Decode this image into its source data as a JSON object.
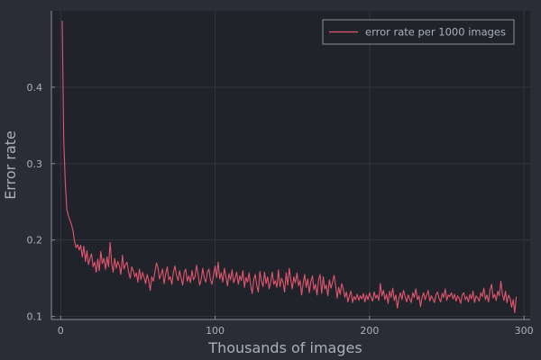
{
  "colors": {
    "background": "#2a2d35",
    "plot_background": "#21232a",
    "grid": "#363a43",
    "axis": "#8a8f99",
    "text": "#a9b0ba",
    "series": "#e2566f"
  },
  "chart_data": {
    "type": "line",
    "title": "",
    "xlabel": "Thousands of images",
    "ylabel": "Error rate",
    "xlim": [
      -6,
      304
    ],
    "ylim": [
      0.096,
      0.5
    ],
    "xticks": [
      0,
      100,
      200,
      300
    ],
    "xtick_labels": [
      "0",
      "100",
      "200",
      "300"
    ],
    "yticks": [
      0.1,
      0.2,
      0.3,
      0.4
    ],
    "ytick_labels": [
      "0.1",
      "0.2",
      "0.3",
      "0.4"
    ],
    "grid": true,
    "legend_position": "top-right",
    "series": [
      {
        "name": "error rate per 1000 images",
        "color": "#e2566f",
        "x": [
          1,
          2,
          3,
          4,
          5,
          6,
          7,
          8,
          9,
          10,
          11,
          12,
          13,
          14,
          15,
          16,
          17,
          18,
          19,
          20,
          21,
          22,
          23,
          24,
          25,
          26,
          27,
          28,
          29,
          30,
          31,
          32,
          33,
          34,
          35,
          36,
          37,
          38,
          39,
          40,
          41,
          42,
          43,
          44,
          45,
          46,
          47,
          48,
          49,
          50,
          51,
          52,
          53,
          54,
          55,
          56,
          57,
          58,
          59,
          60,
          61,
          62,
          63,
          64,
          65,
          66,
          67,
          68,
          69,
          70,
          71,
          72,
          73,
          74,
          75,
          76,
          77,
          78,
          79,
          80,
          81,
          82,
          83,
          84,
          85,
          86,
          87,
          88,
          89,
          90,
          91,
          92,
          93,
          94,
          95,
          96,
          97,
          98,
          99,
          100,
          101,
          102,
          103,
          104,
          105,
          106,
          107,
          108,
          109,
          110,
          111,
          112,
          113,
          114,
          115,
          116,
          117,
          118,
          119,
          120,
          121,
          122,
          123,
          124,
          125,
          126,
          127,
          128,
          129,
          130,
          131,
          132,
          133,
          134,
          135,
          136,
          137,
          138,
          139,
          140,
          141,
          142,
          143,
          144,
          145,
          146,
          147,
          148,
          149,
          150,
          151,
          152,
          153,
          154,
          155,
          156,
          157,
          158,
          159,
          160,
          161,
          162,
          163,
          164,
          165,
          166,
          167,
          168,
          169,
          170,
          171,
          172,
          173,
          174,
          175,
          176,
          177,
          178,
          179,
          180,
          181,
          182,
          183,
          184,
          185,
          186,
          187,
          188,
          189,
          190,
          191,
          192,
          193,
          194,
          195,
          196,
          197,
          198,
          199,
          200,
          201,
          202,
          203,
          204,
          205,
          206,
          207,
          208,
          209,
          210,
          211,
          212,
          213,
          214,
          215,
          216,
          217,
          218,
          219,
          220,
          221,
          222,
          223,
          224,
          225,
          226,
          227,
          228,
          229,
          230,
          231,
          232,
          233,
          234,
          235,
          236,
          237,
          238,
          239,
          240,
          241,
          242,
          243,
          244,
          245,
          246,
          247,
          248,
          249,
          250,
          251,
          252,
          253,
          254,
          255,
          256,
          257,
          258,
          259,
          260,
          261,
          262,
          263,
          264,
          265,
          266,
          267,
          268,
          269,
          270,
          271,
          272,
          273,
          274,
          275,
          276,
          277,
          278,
          279,
          280,
          281,
          282,
          283,
          284,
          285,
          286,
          287,
          288,
          289,
          290,
          291,
          292,
          293,
          294,
          295
        ],
        "y": [
          0.487,
          0.33,
          0.275,
          0.24,
          0.232,
          0.226,
          0.22,
          0.212,
          0.198,
          0.19,
          0.194,
          0.187,
          0.193,
          0.178,
          0.192,
          0.172,
          0.186,
          0.168,
          0.176,
          0.182,
          0.165,
          0.171,
          0.158,
          0.175,
          0.16,
          0.185,
          0.169,
          0.176,
          0.162,
          0.178,
          0.165,
          0.197,
          0.17,
          0.158,
          0.176,
          0.163,
          0.172,
          0.166,
          0.155,
          0.18,
          0.162,
          0.168,
          0.171,
          0.158,
          0.15,
          0.165,
          0.16,
          0.152,
          0.157,
          0.145,
          0.162,
          0.148,
          0.158,
          0.151,
          0.143,
          0.155,
          0.147,
          0.134,
          0.152,
          0.146,
          0.158,
          0.17,
          0.164,
          0.149,
          0.155,
          0.162,
          0.143,
          0.156,
          0.165,
          0.148,
          0.152,
          0.142,
          0.158,
          0.166,
          0.154,
          0.147,
          0.16,
          0.15,
          0.141,
          0.158,
          0.162,
          0.146,
          0.153,
          0.144,
          0.16,
          0.148,
          0.152,
          0.167,
          0.155,
          0.141,
          0.149,
          0.163,
          0.15,
          0.145,
          0.158,
          0.162,
          0.148,
          0.142,
          0.155,
          0.166,
          0.151,
          0.171,
          0.149,
          0.157,
          0.145,
          0.163,
          0.152,
          0.14,
          0.156,
          0.148,
          0.161,
          0.144,
          0.15,
          0.158,
          0.142,
          0.153,
          0.147,
          0.16,
          0.138,
          0.151,
          0.145,
          0.157,
          0.141,
          0.13,
          0.148,
          0.155,
          0.14,
          0.132,
          0.159,
          0.146,
          0.139,
          0.158,
          0.143,
          0.152,
          0.136,
          0.145,
          0.158,
          0.142,
          0.147,
          0.138,
          0.161,
          0.139,
          0.15,
          0.145,
          0.132,
          0.157,
          0.141,
          0.163,
          0.148,
          0.136,
          0.152,
          0.144,
          0.157,
          0.14,
          0.147,
          0.128,
          0.143,
          0.155,
          0.138,
          0.149,
          0.131,
          0.146,
          0.153,
          0.135,
          0.142,
          0.128,
          0.148,
          0.155,
          0.13,
          0.152,
          0.136,
          0.141,
          0.127,
          0.148,
          0.137,
          0.144,
          0.154,
          0.141,
          0.124,
          0.138,
          0.129,
          0.143,
          0.136,
          0.125,
          0.132,
          0.119,
          0.127,
          0.133,
          0.118,
          0.126,
          0.122,
          0.129,
          0.121,
          0.127,
          0.123,
          0.13,
          0.119,
          0.128,
          0.122,
          0.131,
          0.125,
          0.12,
          0.132,
          0.124,
          0.128,
          0.121,
          0.143,
          0.127,
          0.134,
          0.122,
          0.129,
          0.117,
          0.133,
          0.125,
          0.137,
          0.121,
          0.128,
          0.111,
          0.124,
          0.131,
          0.122,
          0.134,
          0.126,
          0.119,
          0.128,
          0.123,
          0.118,
          0.131,
          0.125,
          0.136,
          0.122,
          0.127,
          0.113,
          0.125,
          0.131,
          0.122,
          0.128,
          0.134,
          0.12,
          0.127,
          0.123,
          0.118,
          0.128,
          0.132,
          0.124,
          0.119,
          0.13,
          0.125,
          0.136,
          0.121,
          0.128,
          0.126,
          0.131,
          0.123,
          0.129,
          0.12,
          0.127,
          0.124,
          0.117,
          0.128,
          0.131,
          0.122,
          0.126,
          0.119,
          0.129,
          0.123,
          0.133,
          0.118,
          0.127,
          0.124,
          0.12,
          0.131,
          0.126,
          0.137,
          0.122,
          0.128,
          0.119,
          0.135,
          0.142,
          0.124,
          0.129,
          0.121,
          0.133,
          0.127,
          0.146,
          0.129,
          0.121,
          0.133,
          0.118,
          0.128,
          0.124,
          0.112,
          0.122,
          0.105,
          0.126
        ]
      }
    ]
  }
}
